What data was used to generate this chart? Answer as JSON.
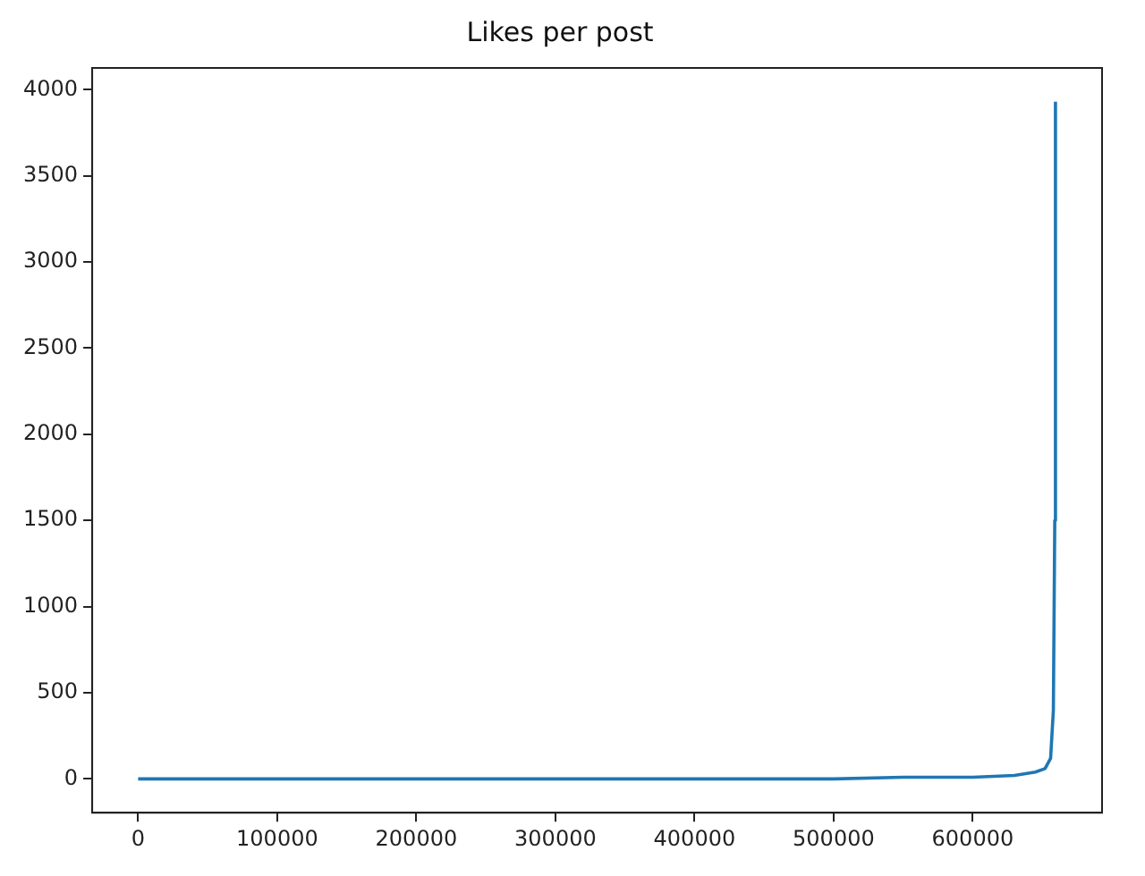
{
  "chart_data": {
    "type": "line",
    "title": "Likes per post",
    "x": [
      0,
      100000,
      200000,
      300000,
      400000,
      450000,
      500000,
      550000,
      600000,
      630000,
      645000,
      652000,
      656000,
      658000,
      659000,
      659500
    ],
    "series": [
      {
        "color": "#1f77b4",
        "values": [
          0,
          0,
          0,
          0,
          0,
          0,
          0,
          10,
          10,
          20,
          40,
          60,
          120,
          400,
          1500,
          3930
        ]
      }
    ],
    "xlim": [
      -33000,
      693000
    ],
    "xticks": [
      0,
      100000,
      200000,
      300000,
      400000,
      500000,
      600000
    ],
    "ylim": [
      -196,
      4126
    ],
    "yticks": [
      0,
      500,
      1000,
      1500,
      2000,
      2500,
      3000,
      3500,
      4000
    ],
    "grid": false,
    "legend": false,
    "marker": "none",
    "line_style": "solid"
  }
}
